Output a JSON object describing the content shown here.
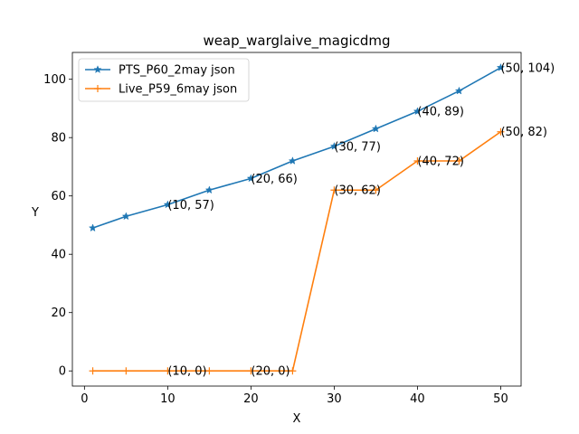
{
  "chart_data": {
    "type": "line",
    "title": "weap_warglaive_magicdmg",
    "xlabel": "X",
    "ylabel": "Y",
    "xlim": [
      -1.45,
      52.45
    ],
    "ylim": [
      -5.2,
      109.2
    ],
    "xticks": [
      0,
      10,
      20,
      30,
      40,
      50
    ],
    "yticks": [
      0,
      20,
      40,
      60,
      80,
      100
    ],
    "grid": false,
    "legend_position": "top-left",
    "series": [
      {
        "name": "PTS_P60_2may json",
        "color": "#1f77b4",
        "marker": "star",
        "x": [
          1,
          5,
          10,
          15,
          20,
          25,
          30,
          35,
          40,
          45,
          50
        ],
        "y": [
          49,
          53,
          57,
          62,
          66,
          72,
          77,
          83,
          89,
          96,
          104
        ]
      },
      {
        "name": "Live_P59_6may json",
        "color": "#ff7f0e",
        "marker": "plus",
        "x": [
          1,
          5,
          10,
          15,
          20,
          25,
          30,
          35,
          40,
          45,
          50
        ],
        "y": [
          0,
          0,
          0,
          0,
          0,
          0,
          62,
          62,
          72,
          72,
          82
        ]
      }
    ],
    "annotations": [
      {
        "x": 10,
        "y": 57,
        "text": "(10, 57)"
      },
      {
        "x": 20,
        "y": 66,
        "text": "(20, 66)"
      },
      {
        "x": 30,
        "y": 77,
        "text": "(30, 77)"
      },
      {
        "x": 40,
        "y": 89,
        "text": "(40, 89)"
      },
      {
        "x": 50,
        "y": 104,
        "text": "(50, 104)"
      },
      {
        "x": 10,
        "y": 0,
        "text": "(10, 0)"
      },
      {
        "x": 20,
        "y": 0,
        "text": "(20, 0)"
      },
      {
        "x": 30,
        "y": 62,
        "text": "(30, 62)"
      },
      {
        "x": 40,
        "y": 72,
        "text": "(40, 72)"
      },
      {
        "x": 50,
        "y": 82,
        "text": "(50, 82)"
      }
    ]
  }
}
